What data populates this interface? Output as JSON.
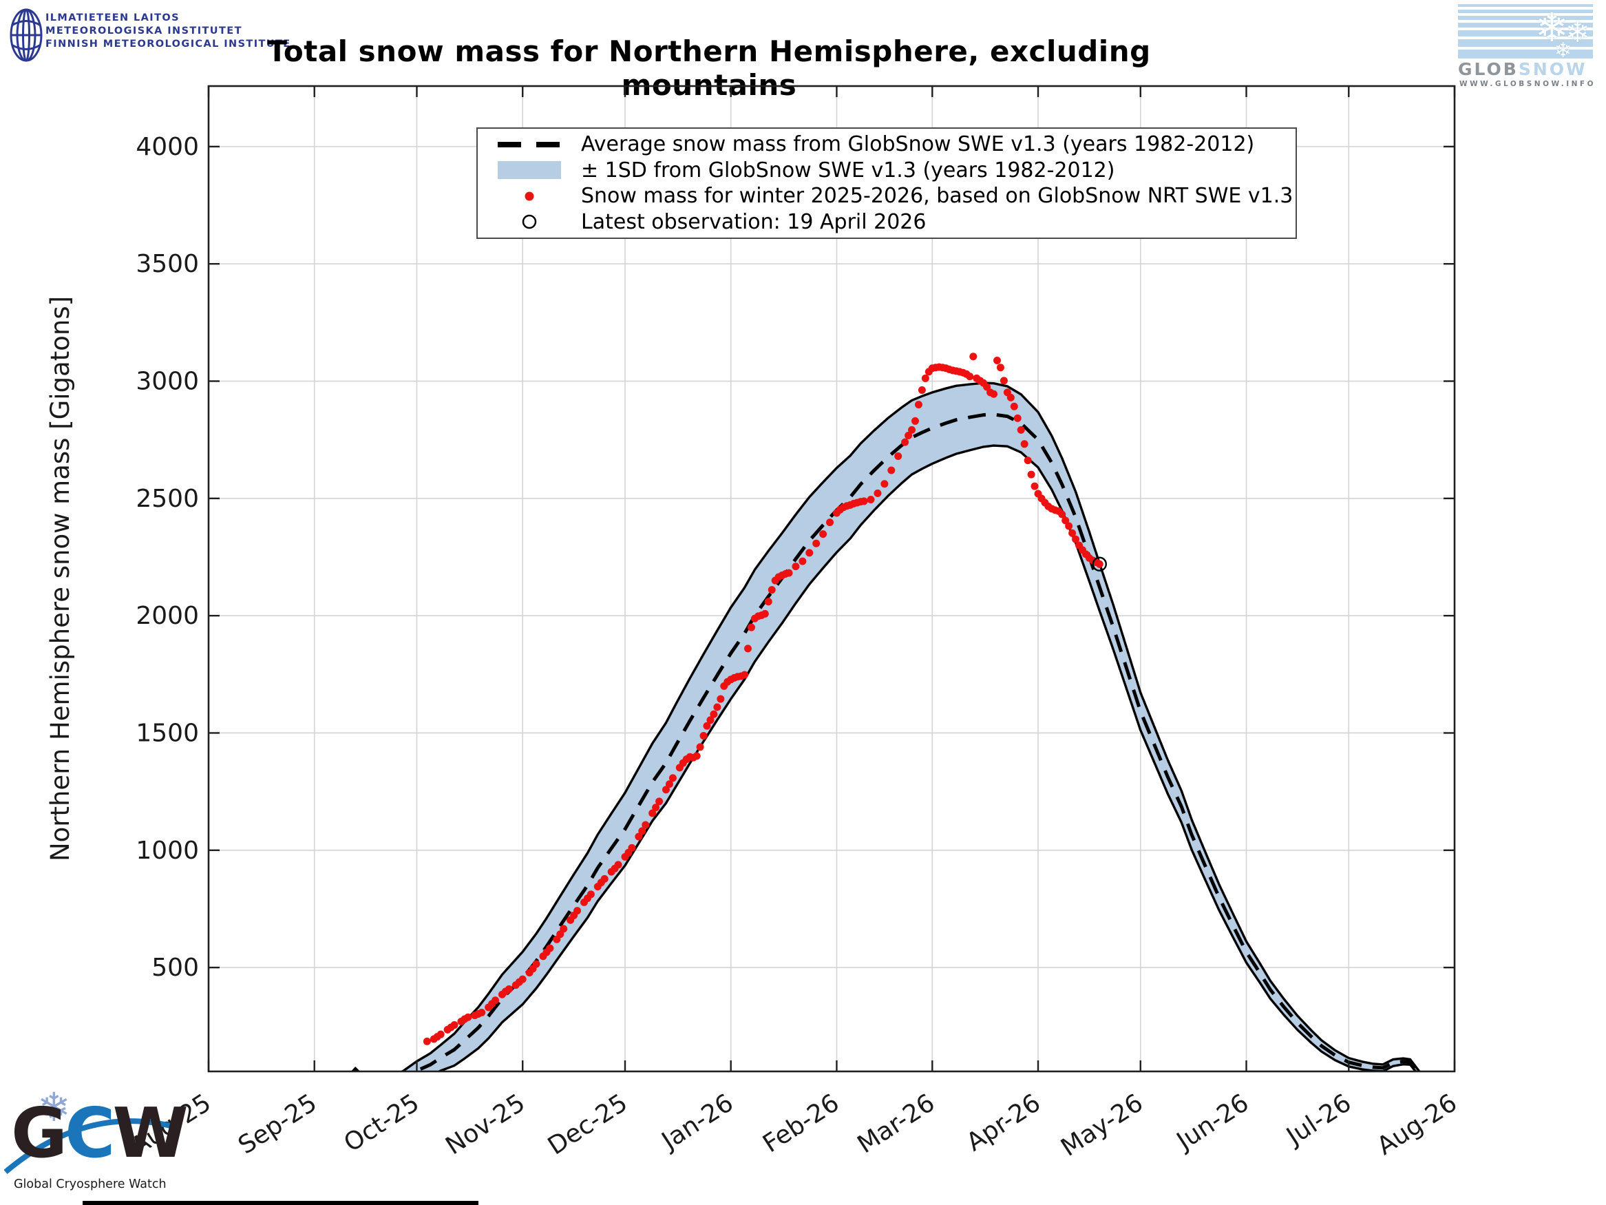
{
  "header": {
    "title": "Total snow mass for Northern Hemisphere, excluding mountains",
    "fmi_logo": {
      "line1": "ILMATIETEEN LAITOS",
      "line2": "METEOROLOGISKA INSTITUTET",
      "line3": "FINNISH METEOROLOGICAL INSTITUTE"
    },
    "globsnow_logo": {
      "name_left": "GLOB",
      "name_right": "SNOW",
      "url": "WWW.GLOBSNOW.INFO"
    },
    "gcw_logo": {
      "g": "G",
      "c": "C",
      "w": "W",
      "subtitle": "Global Cryosphere Watch",
      "snowflake": "❄"
    }
  },
  "legend": {
    "entries": [
      {
        "symbol": "dashed-line",
        "label": "Average snow mass from GlobSnow SWE v1.3 (years 1982-2012)"
      },
      {
        "symbol": "band-patch",
        "label": "± 1SD from GlobSnow SWE v1.3 (years 1982-2012)"
      },
      {
        "symbol": "red-dot",
        "label": "Snow mass for winter 2025-2026, based on GlobSnow NRT SWE v1.3"
      },
      {
        "symbol": "open-circle",
        "label": "Latest observation: 19 April 2026"
      }
    ]
  },
  "chart_data": {
    "type": "line",
    "title": "Total snow mass for Northern Hemisphere, excluding mountains",
    "ylabel": "Northern Hemisphere snow mass [Gigatons]",
    "xlabel": "",
    "grid": true,
    "legend_position": "upper-center",
    "ylim": [
      57,
      4258
    ],
    "x_unit": "days since 1 Aug 2025",
    "x_tick_labels": [
      "Aug-25",
      "Sep-25",
      "Oct-25",
      "Nov-25",
      "Dec-25",
      "Jan-26",
      "Feb-26",
      "Mar-26",
      "Apr-26",
      "May-26",
      "Jun-26",
      "Jul-26",
      "Aug-26"
    ],
    "x_tick_days": [
      0,
      31,
      61,
      92,
      122,
      153,
      184,
      212,
      243,
      273,
      304,
      334,
      365
    ],
    "y_ticks": [
      500,
      1000,
      1500,
      2000,
      2500,
      3000,
      3500,
      4000
    ],
    "colors": {
      "band_fill": "#b7cde3",
      "band_edge": "#000000",
      "mean_line": "#000000",
      "nrt_dots": "#ee1111",
      "grid": "#d4d4d4",
      "frame": "#1f1f1f",
      "latest_obs": "#000000"
    },
    "series": [
      {
        "name": "climatology_mean_1982_2012",
        "style": "dashed-black",
        "points": [
          [
            40,
            15
          ],
          [
            43,
            62
          ],
          [
            46,
            18
          ],
          [
            52,
            15
          ],
          [
            57,
            32
          ],
          [
            61,
            60
          ],
          [
            65,
            86
          ],
          [
            68,
            115
          ],
          [
            72,
            150
          ],
          [
            75,
            190
          ],
          [
            79,
            243
          ],
          [
            82,
            293
          ],
          [
            86,
            368
          ],
          [
            92,
            455
          ],
          [
            96,
            528
          ],
          [
            99,
            590
          ],
          [
            103,
            678
          ],
          [
            107,
            765
          ],
          [
            111,
            850
          ],
          [
            114,
            925
          ],
          [
            118,
            1008
          ],
          [
            122,
            1090
          ],
          [
            126,
            1190
          ],
          [
            130,
            1290
          ],
          [
            134,
            1372
          ],
          [
            137,
            1450
          ],
          [
            141,
            1552
          ],
          [
            145,
            1650
          ],
          [
            149,
            1746
          ],
          [
            153,
            1840
          ],
          [
            157,
            1924
          ],
          [
            160,
            2000
          ],
          [
            164,
            2082
          ],
          [
            168,
            2160
          ],
          [
            172,
            2242
          ],
          [
            176,
            2320
          ],
          [
            180,
            2386
          ],
          [
            184,
            2450
          ],
          [
            188,
            2506
          ],
          [
            191,
            2560
          ],
          [
            195,
            2620
          ],
          [
            199,
            2676
          ],
          [
            203,
            2726
          ],
          [
            206,
            2760
          ],
          [
            209,
            2781
          ],
          [
            212,
            2800
          ],
          [
            216,
            2821
          ],
          [
            219,
            2835
          ],
          [
            223,
            2846
          ],
          [
            227,
            2856
          ],
          [
            230,
            2858
          ],
          [
            234,
            2850
          ],
          [
            238,
            2820
          ],
          [
            243,
            2750
          ],
          [
            247,
            2652
          ],
          [
            250,
            2560
          ],
          [
            254,
            2420
          ],
          [
            258,
            2252
          ],
          [
            261,
            2122
          ],
          [
            265,
            1952
          ],
          [
            269,
            1772
          ],
          [
            273,
            1592
          ],
          [
            277,
            1452
          ],
          [
            281,
            1312
          ],
          [
            285,
            1186
          ],
          [
            288,
            1066
          ],
          [
            292,
            932
          ],
          [
            296,
            800
          ],
          [
            300,
            682
          ],
          [
            304,
            566
          ],
          [
            308,
            476
          ],
          [
            311,
            406
          ],
          [
            315,
            332
          ],
          [
            319,
            264
          ],
          [
            323,
            206
          ],
          [
            326,
            166
          ],
          [
            330,
            126
          ],
          [
            334,
            96
          ],
          [
            338,
            82
          ],
          [
            341,
            75
          ],
          [
            344,
            72
          ],
          [
            347,
            94
          ],
          [
            350,
            100
          ],
          [
            352,
            97
          ],
          [
            354,
            60
          ],
          [
            356,
            25
          ],
          [
            358,
            8
          ]
        ]
      },
      {
        "name": "plus_minus_1sd",
        "style": "band",
        "points": [
          [
            40,
            8
          ],
          [
            52,
            10
          ],
          [
            61,
            40
          ],
          [
            68,
            55
          ],
          [
            75,
            78
          ],
          [
            82,
            95
          ],
          [
            92,
            112
          ],
          [
            99,
            120
          ],
          [
            107,
            132
          ],
          [
            114,
            142
          ],
          [
            122,
            155
          ],
          [
            130,
            165
          ],
          [
            137,
            176
          ],
          [
            145,
            186
          ],
          [
            153,
            195
          ],
          [
            160,
            196
          ],
          [
            168,
            192
          ],
          [
            176,
            186
          ],
          [
            184,
            180
          ],
          [
            191,
            174
          ],
          [
            199,
            166
          ],
          [
            206,
            158
          ],
          [
            212,
            152
          ],
          [
            219,
            145
          ],
          [
            227,
            136
          ],
          [
            234,
            128
          ],
          [
            243,
            118
          ],
          [
            250,
            112
          ],
          [
            258,
            105
          ],
          [
            265,
            95
          ],
          [
            273,
            80
          ],
          [
            281,
            72
          ],
          [
            288,
            64
          ],
          [
            296,
            55
          ],
          [
            304,
            45
          ],
          [
            311,
            38
          ],
          [
            319,
            30
          ],
          [
            326,
            24
          ],
          [
            334,
            18
          ],
          [
            341,
            15
          ],
          [
            348,
            14
          ],
          [
            354,
            10
          ],
          [
            358,
            5
          ]
        ]
      },
      {
        "name": "nrt_winter_2025_2026",
        "style": "red-dots",
        "points": [
          [
            64,
            185
          ],
          [
            66,
            195
          ],
          [
            67,
            205
          ],
          [
            68,
            215
          ],
          [
            70,
            235
          ],
          [
            71,
            245
          ],
          [
            72,
            255
          ],
          [
            74,
            270
          ],
          [
            75,
            280
          ],
          [
            76,
            288
          ],
          [
            78,
            296
          ],
          [
            79,
            302
          ],
          [
            80,
            308
          ],
          [
            82,
            330
          ],
          [
            83,
            345
          ],
          [
            84,
            360
          ],
          [
            86,
            385
          ],
          [
            87,
            398
          ],
          [
            88,
            408
          ],
          [
            90,
            425
          ],
          [
            91,
            438
          ],
          [
            92,
            450
          ],
          [
            94,
            478
          ],
          [
            95,
            495
          ],
          [
            96,
            515
          ],
          [
            98,
            548
          ],
          [
            99,
            565
          ],
          [
            100,
            582
          ],
          [
            102,
            620
          ],
          [
            103,
            642
          ],
          [
            104,
            665
          ],
          [
            106,
            702
          ],
          [
            107,
            722
          ],
          [
            108,
            742
          ],
          [
            110,
            778
          ],
          [
            111,
            795
          ],
          [
            112,
            812
          ],
          [
            114,
            845
          ],
          [
            115,
            862
          ],
          [
            116,
            878
          ],
          [
            118,
            908
          ],
          [
            119,
            922
          ],
          [
            120,
            938
          ],
          [
            122,
            972
          ],
          [
            123,
            990
          ],
          [
            124,
            1010
          ],
          [
            126,
            1058
          ],
          [
            127,
            1082
          ],
          [
            128,
            1108
          ],
          [
            130,
            1158
          ],
          [
            131,
            1182
          ],
          [
            132,
            1208
          ],
          [
            134,
            1258
          ],
          [
            135,
            1282
          ],
          [
            136,
            1308
          ],
          [
            138,
            1352
          ],
          [
            139,
            1372
          ],
          [
            140,
            1388
          ],
          [
            141,
            1398
          ],
          [
            142,
            1395
          ],
          [
            143,
            1402
          ],
          [
            144,
            1440
          ],
          [
            145,
            1488
          ],
          [
            146,
            1530
          ],
          [
            147,
            1555
          ],
          [
            148,
            1580
          ],
          [
            149,
            1610
          ],
          [
            150,
            1645
          ],
          [
            151,
            1700
          ],
          [
            152,
            1718
          ],
          [
            153,
            1728
          ],
          [
            154,
            1735
          ],
          [
            155,
            1740
          ],
          [
            156,
            1742
          ],
          [
            157,
            1748
          ],
          [
            158,
            1860
          ],
          [
            159,
            1950
          ],
          [
            160,
            1988
          ],
          [
            161,
            1998
          ],
          [
            162,
            2002
          ],
          [
            163,
            2008
          ],
          [
            164,
            2060
          ],
          [
            165,
            2110
          ],
          [
            166,
            2150
          ],
          [
            167,
            2165
          ],
          [
            168,
            2172
          ],
          [
            169,
            2178
          ],
          [
            170,
            2182
          ],
          [
            172,
            2210
          ],
          [
            174,
            2232
          ],
          [
            176,
            2268
          ],
          [
            178,
            2308
          ],
          [
            180,
            2348
          ],
          [
            182,
            2398
          ],
          [
            184,
            2438
          ],
          [
            185,
            2452
          ],
          [
            186,
            2462
          ],
          [
            187,
            2468
          ],
          [
            188,
            2472
          ],
          [
            189,
            2478
          ],
          [
            190,
            2482
          ],
          [
            191,
            2486
          ],
          [
            192,
            2488
          ],
          [
            194,
            2495
          ],
          [
            196,
            2522
          ],
          [
            198,
            2562
          ],
          [
            200,
            2620
          ],
          [
            202,
            2680
          ],
          [
            204,
            2740
          ],
          [
            205,
            2768
          ],
          [
            206,
            2792
          ],
          [
            207,
            2830
          ],
          [
            208,
            2900
          ],
          [
            209,
            2962
          ],
          [
            210,
            3012
          ],
          [
            211,
            3040
          ],
          [
            212,
            3055
          ],
          [
            213,
            3058
          ],
          [
            214,
            3060
          ],
          [
            215,
            3058
          ],
          [
            216,
            3055
          ],
          [
            217,
            3050
          ],
          [
            218,
            3046
          ],
          [
            219,
            3043
          ],
          [
            220,
            3040
          ],
          [
            221,
            3036
          ],
          [
            222,
            3030
          ],
          [
            223,
            3020
          ],
          [
            224,
            3105
          ],
          [
            225,
            3012
          ],
          [
            226,
            3002
          ],
          [
            227,
            2992
          ],
          [
            228,
            2975
          ],
          [
            229,
            2952
          ],
          [
            230,
            2945
          ],
          [
            231,
            3088
          ],
          [
            232,
            3058
          ],
          [
            233,
            3002
          ],
          [
            234,
            2952
          ],
          [
            235,
            2930
          ],
          [
            236,
            2892
          ],
          [
            237,
            2842
          ],
          [
            238,
            2792
          ],
          [
            239,
            2732
          ],
          [
            240,
            2662
          ],
          [
            241,
            2602
          ],
          [
            242,
            2552
          ],
          [
            243,
            2520
          ],
          [
            244,
            2500
          ],
          [
            245,
            2482
          ],
          [
            246,
            2466
          ],
          [
            247,
            2456
          ],
          [
            248,
            2450
          ],
          [
            249,
            2446
          ],
          [
            250,
            2432
          ],
          [
            251,
            2406
          ],
          [
            252,
            2382
          ],
          [
            253,
            2352
          ],
          [
            254,
            2326
          ],
          [
            255,
            2300
          ],
          [
            256,
            2280
          ],
          [
            257,
            2262
          ],
          [
            258,
            2246
          ],
          [
            259,
            2236
          ],
          [
            260,
            2228
          ],
          [
            261,
            2220
          ]
        ]
      }
    ],
    "latest_observation": {
      "day": 261,
      "value": 2220,
      "date_label": "19 April 2026"
    }
  }
}
